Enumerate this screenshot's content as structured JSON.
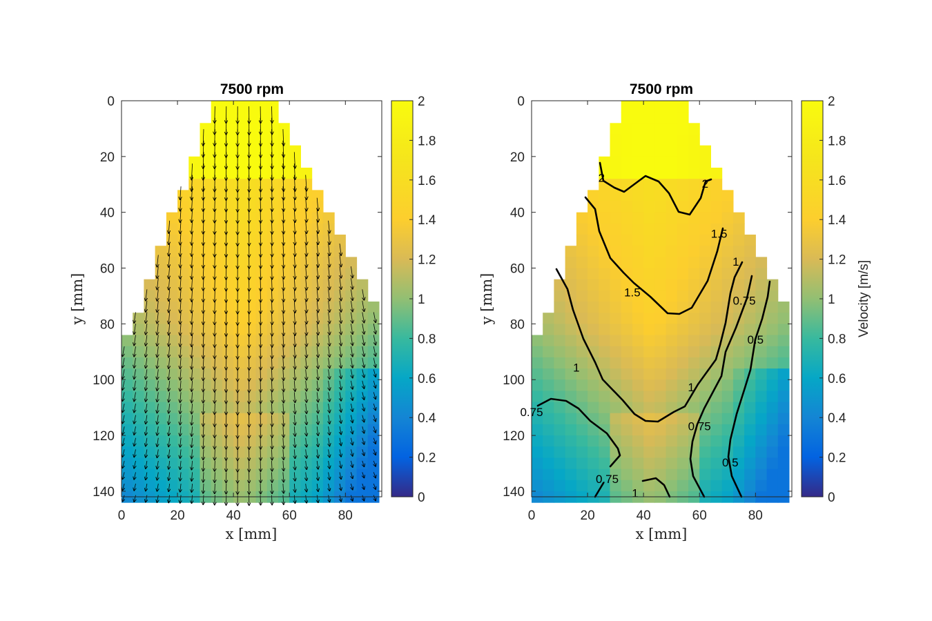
{
  "chart_data": [
    {
      "type": "heatmap",
      "overlay": "quiver",
      "title": "7500 rpm",
      "xlabel": "x [mm]",
      "ylabel": "y [mm]",
      "xlim": [
        0,
        93
      ],
      "ylim": [
        142,
        0
      ],
      "xticks": [
        "0",
        "20",
        "40",
        "60",
        "80"
      ],
      "yticks": [
        "0",
        "20",
        "40",
        "60",
        "80",
        "100",
        "120",
        "140"
      ],
      "colorbar": {
        "label": "",
        "range": [
          0,
          2
        ],
        "ticks": [
          "0",
          "0.2",
          "0.4",
          "0.6",
          "0.8",
          "1",
          "1.2",
          "1.4",
          "1.6",
          "1.8",
          "2"
        ]
      },
      "colormap": "parula",
      "grid": false
    },
    {
      "type": "heatmap",
      "overlay": "contour",
      "title": "7500 rpm",
      "xlabel": "x [mm]",
      "ylabel": "y [mm]",
      "xlim": [
        0,
        93
      ],
      "ylim": [
        142,
        0
      ],
      "xticks": [
        "0",
        "20",
        "40",
        "60",
        "80"
      ],
      "yticks": [
        "0",
        "20",
        "40",
        "60",
        "80",
        "100",
        "120",
        "140"
      ],
      "colorbar": {
        "label": "Velocity [m/s]",
        "range": [
          0,
          2
        ],
        "ticks": [
          "0",
          "0.2",
          "0.4",
          "0.6",
          "0.8",
          "1",
          "1.2",
          "1.4",
          "1.6",
          "1.8",
          "2"
        ]
      },
      "contour_levels": [
        "0.5",
        "0.75",
        "1",
        "1.5",
        "2"
      ],
      "contour_labels": [
        {
          "text": "2",
          "x": 25,
          "y": 28
        },
        {
          "text": "2",
          "x": 62,
          "y": 30
        },
        {
          "text": "1.5",
          "x": 67,
          "y": 48
        },
        {
          "text": "1.5",
          "x": 36,
          "y": 69
        },
        {
          "text": "1",
          "x": 73,
          "y": 58
        },
        {
          "text": "0.75",
          "x": 76,
          "y": 72
        },
        {
          "text": "0.5",
          "x": 80,
          "y": 86
        },
        {
          "text": "1",
          "x": 16,
          "y": 96
        },
        {
          "text": "1",
          "x": 57,
          "y": 103
        },
        {
          "text": "0.75",
          "x": 0,
          "y": 112
        },
        {
          "text": "0.75",
          "x": 60,
          "y": 117
        },
        {
          "text": "0.5",
          "x": 71,
          "y": 130
        },
        {
          "text": "0.75",
          "x": 27,
          "y": 136
        },
        {
          "text": "1",
          "x": 37,
          "y": 141
        }
      ],
      "colormap": "parula",
      "grid": false
    }
  ]
}
